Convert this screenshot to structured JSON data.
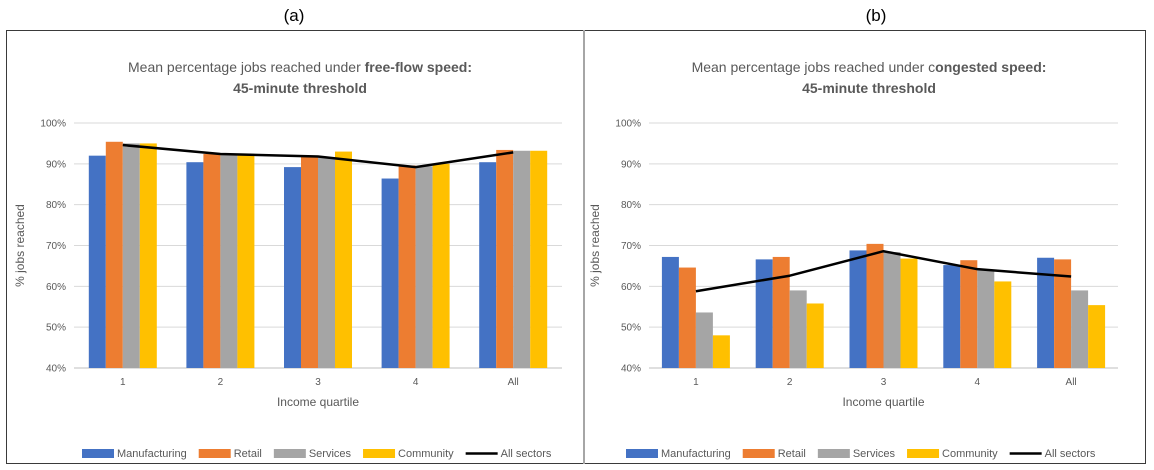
{
  "panels": [
    {
      "label": "(a)"
    },
    {
      "label": "(b)"
    }
  ],
  "chart_data": [
    {
      "type": "bar",
      "title": "Mean percentage jobs reached under free-flow speed:",
      "title_plain": "Mean percentage jobs reached under ",
      "title_bold": "free-flow speed:",
      "subtitle": "45-minute threshold",
      "xlabel": "Income quartile",
      "ylabel": "% jobs reached",
      "ylim": [
        40,
        100
      ],
      "yticks": [
        40,
        50,
        60,
        70,
        80,
        90,
        100
      ],
      "ytick_labels": [
        "40%",
        "50%",
        "60%",
        "70%",
        "80%",
        "90%",
        "100%"
      ],
      "categories": [
        "1",
        "2",
        "3",
        "4",
        "All"
      ],
      "grid": true,
      "legend_position": "bottom",
      "series": [
        {
          "name": "Manufacturing",
          "type": "bar",
          "color": "#4472C4",
          "values": [
            92.0,
            90.4,
            89.2,
            86.4,
            90.4
          ]
        },
        {
          "name": "Retail",
          "type": "bar",
          "color": "#ED7D31",
          "values": [
            95.4,
            92.4,
            92.0,
            89.6,
            93.4
          ]
        },
        {
          "name": "Services",
          "type": "bar",
          "color": "#A5A5A5",
          "values": [
            95.0,
            92.4,
            91.6,
            89.4,
            93.2
          ]
        },
        {
          "name": "Community",
          "type": "bar",
          "color": "#FFC000",
          "values": [
            95.0,
            92.4,
            93.0,
            90.0,
            93.2
          ]
        },
        {
          "name": "All sectors",
          "type": "line",
          "color": "#000000",
          "values": [
            94.6,
            92.4,
            91.8,
            89.2,
            92.8
          ]
        }
      ]
    },
    {
      "type": "bar",
      "title": "Mean percentage jobs reached under congested speed:",
      "title_plain": "Mean percentage jobs reached under c",
      "title_bold": "ongested speed:",
      "subtitle": "45-minute threshold",
      "xlabel": "Income quartile",
      "ylabel": "% jobs reached",
      "ylim": [
        40,
        100
      ],
      "yticks": [
        40,
        50,
        60,
        70,
        80,
        90,
        100
      ],
      "ytick_labels": [
        "40%",
        "50%",
        "60%",
        "70%",
        "80%",
        "90%",
        "100%"
      ],
      "categories": [
        "1",
        "2",
        "3",
        "4",
        "All"
      ],
      "grid": true,
      "legend_position": "bottom",
      "series": [
        {
          "name": "Manufacturing",
          "type": "bar",
          "color": "#4472C4",
          "values": [
            67.2,
            66.6,
            68.8,
            65.2,
            67.0
          ]
        },
        {
          "name": "Retail",
          "type": "bar",
          "color": "#ED7D31",
          "values": [
            64.6,
            67.2,
            70.4,
            66.4,
            66.6
          ]
        },
        {
          "name": "Services",
          "type": "bar",
          "color": "#A5A5A5",
          "values": [
            53.6,
            59.0,
            68.4,
            64.0,
            59.0
          ]
        },
        {
          "name": "Community",
          "type": "bar",
          "color": "#FFC000",
          "values": [
            48.0,
            55.8,
            66.8,
            61.2,
            55.4
          ]
        },
        {
          "name": "All sectors",
          "type": "line",
          "color": "#000000",
          "values": [
            58.8,
            62.6,
            68.6,
            64.2,
            62.4
          ]
        }
      ]
    }
  ]
}
